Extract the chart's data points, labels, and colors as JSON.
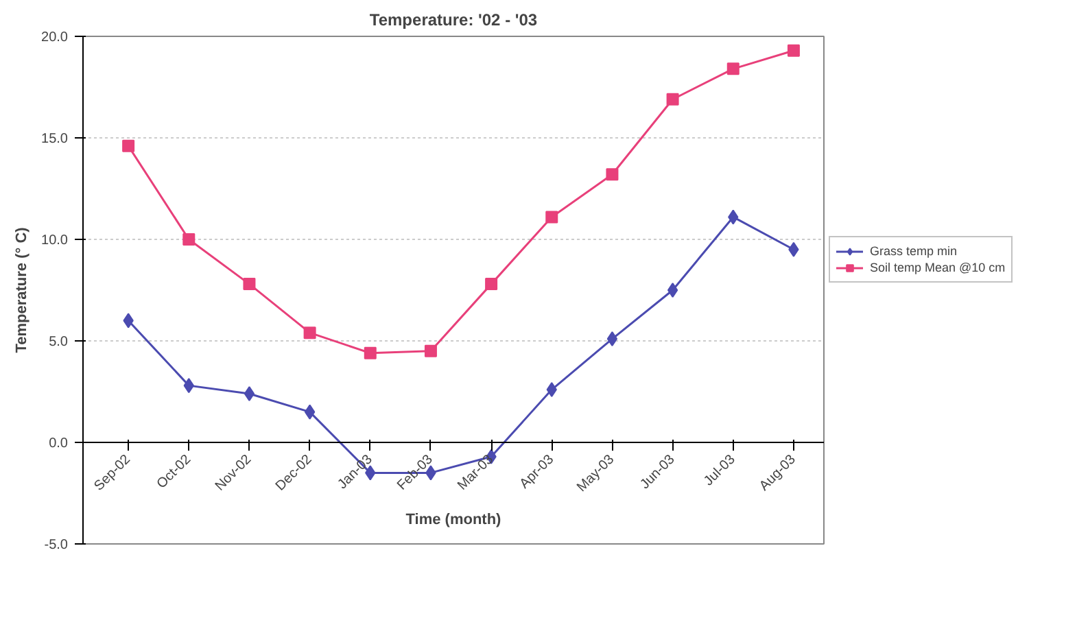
{
  "chart_data": {
    "type": "line",
    "title": "Temperature: '02 - '03",
    "xlabel": "Time (month)",
    "ylabel": "Temperature (° C)",
    "categories": [
      "Sep-02",
      "Oct-02",
      "Nov-02",
      "Dec-02",
      "Jan-03",
      "Feb-03",
      "Mar-03",
      "Apr-03",
      "May-03",
      "Jun-03",
      "Jul-03",
      "Aug-03"
    ],
    "series": [
      {
        "name": "Grass temp min",
        "color": "#4b4bb0",
        "marker": "diamond",
        "values": [
          6.0,
          2.8,
          2.4,
          1.5,
          -1.5,
          -1.5,
          -0.7,
          2.6,
          5.1,
          7.5,
          11.1,
          9.5
        ]
      },
      {
        "name": "Soil temp Mean @10 cm",
        "color": "#e8407a",
        "marker": "square",
        "values": [
          14.6,
          10.0,
          7.8,
          5.4,
          4.4,
          4.5,
          7.8,
          11.1,
          13.2,
          16.9,
          18.4,
          19.3
        ]
      }
    ],
    "ylim": [
      -5.0,
      20.0
    ],
    "yticks": [
      {
        "value": -5,
        "label": "-5.0"
      },
      {
        "value": 0,
        "label": "0.0"
      },
      {
        "value": 5,
        "label": "5.0"
      },
      {
        "value": 10,
        "label": "10.0"
      },
      {
        "value": 15,
        "label": "15.0"
      },
      {
        "value": 20,
        "label": "20.0"
      }
    ],
    "grid": "y",
    "legend": "right",
    "line_style": "solid"
  }
}
